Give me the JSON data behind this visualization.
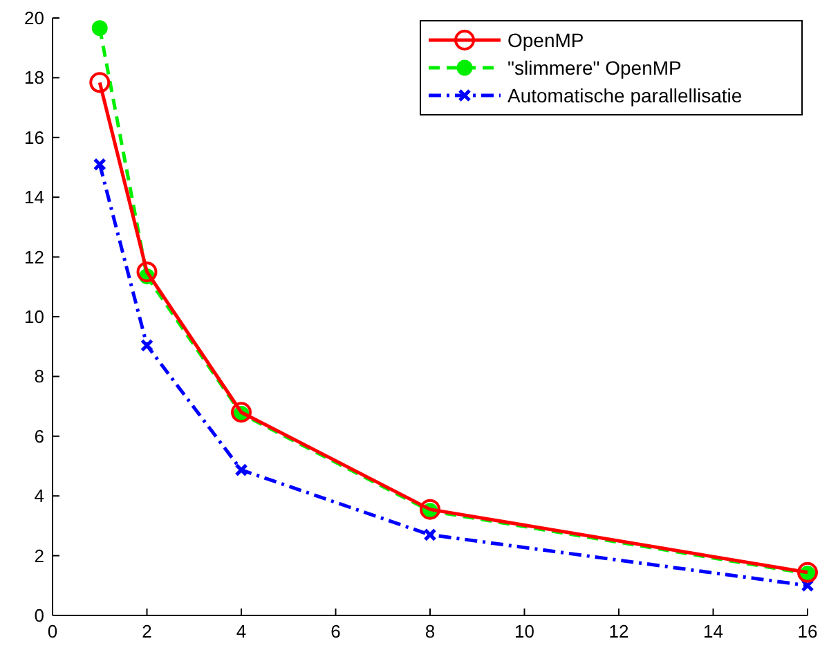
{
  "chart_data": {
    "type": "line",
    "x": [
      1,
      2,
      4,
      8,
      16
    ],
    "series": [
      {
        "name": "OpenMP",
        "color": "#ff0000",
        "values": [
          17.84,
          11.5,
          6.8,
          3.55,
          1.44
        ],
        "marker": "circle",
        "line_style": "solid"
      },
      {
        "name": "\"slimmere\" OpenMP",
        "color": "#00ee00",
        "values": [
          19.66,
          11.35,
          6.75,
          3.5,
          1.4
        ],
        "marker": "circle",
        "line_style": "dashed"
      },
      {
        "name": "Automatische parallellisatie",
        "color": "#0000ff",
        "values": [
          15.1,
          9.04,
          4.87,
          2.7,
          1.0
        ],
        "marker": "cross",
        "line_style": "dashdot"
      }
    ],
    "xlim": [
      0,
      16
    ],
    "xticks": [
      0,
      2,
      4,
      6,
      8,
      10,
      12,
      14,
      16
    ],
    "ylim": [
      0,
      20
    ],
    "yticks": [
      0,
      2,
      4,
      6,
      8,
      10,
      12,
      14,
      16,
      18,
      20
    ],
    "grid": false,
    "legend": "top right"
  }
}
